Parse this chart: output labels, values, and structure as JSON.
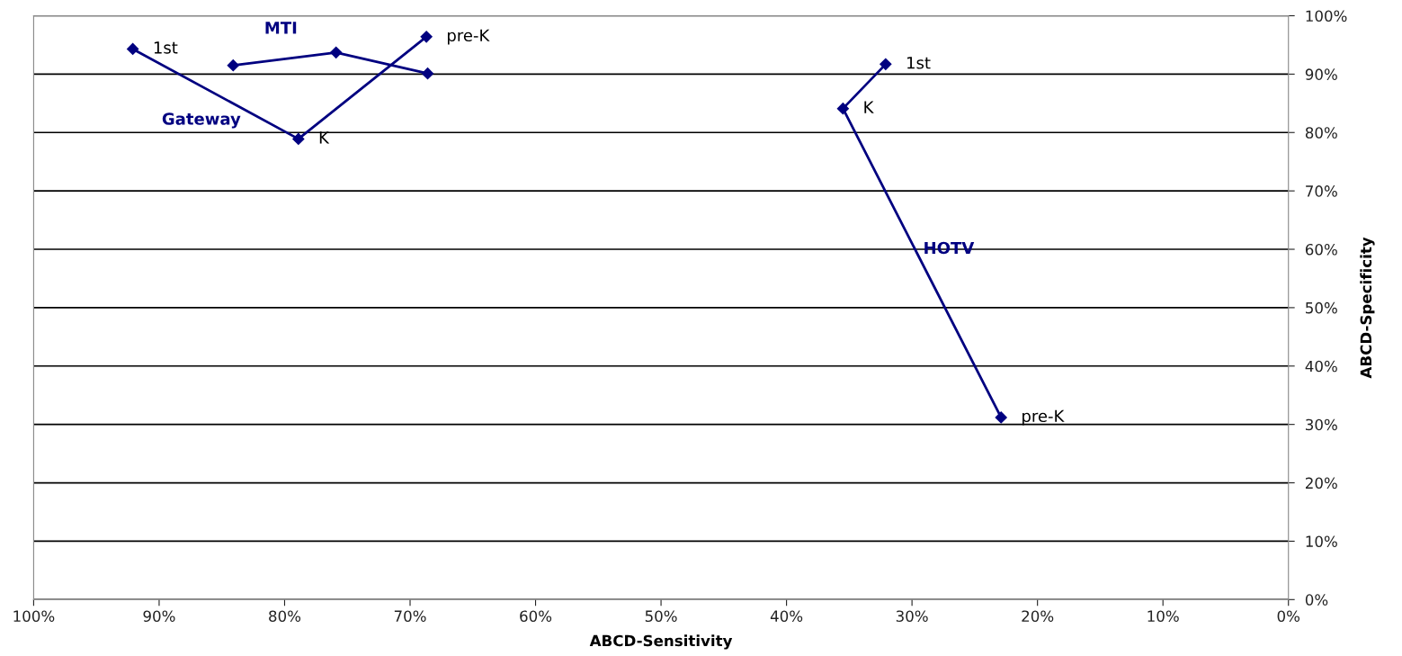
{
  "chart_data": {
    "type": "line",
    "xlabel": "ABCD-Sensitivity",
    "ylabel": "ABCD-Specificity",
    "xlim": [
      100,
      0
    ],
    "ylim": [
      0,
      100
    ],
    "xticks": [
      {
        "value": 100,
        "label": "100%"
      },
      {
        "value": 90,
        "label": "90%"
      },
      {
        "value": 80,
        "label": "80%"
      },
      {
        "value": 70,
        "label": "70%"
      },
      {
        "value": 60,
        "label": "60%"
      },
      {
        "value": 50,
        "label": "50%"
      },
      {
        "value": 40,
        "label": "40%"
      },
      {
        "value": 30,
        "label": "30%"
      },
      {
        "value": 20,
        "label": "20%"
      },
      {
        "value": 10,
        "label": "10%"
      },
      {
        "value": 0,
        "label": "0%"
      }
    ],
    "yticks": [
      {
        "value": 0,
        "label": "0%"
      },
      {
        "value": 10,
        "label": "10%"
      },
      {
        "value": 20,
        "label": "20%"
      },
      {
        "value": 30,
        "label": "30%"
      },
      {
        "value": 40,
        "label": "40%"
      },
      {
        "value": 50,
        "label": "50%"
      },
      {
        "value": 60,
        "label": "60%"
      },
      {
        "value": 70,
        "label": "70%"
      },
      {
        "value": 80,
        "label": "80%"
      },
      {
        "value": 90,
        "label": "90%"
      },
      {
        "value": 100,
        "label": "100%"
      }
    ],
    "grid": "y",
    "marker": "diamond",
    "line_style": "solid",
    "series": [
      {
        "name": "Gateway",
        "color": "#000080",
        "x": [
          92.1,
          78.9,
          68.7
        ],
        "values": [
          94.3,
          78.9,
          96.4
        ]
      },
      {
        "name": "MTI",
        "color": "#000080",
        "x": [
          84.1,
          75.9,
          68.6
        ],
        "values": [
          91.5,
          93.7,
          90.1
        ]
      },
      {
        "name": "HOTV",
        "color": "#000080",
        "x": [
          32.1,
          35.5,
          22.9
        ],
        "values": [
          91.7,
          84.1,
          31.2
        ]
      }
    ],
    "annotations": [
      {
        "text": "1st",
        "x": 92.1,
        "y": 94.3
      },
      {
        "text": "K",
        "x": 78.9,
        "y": 78.9
      },
      {
        "text": "pre-K",
        "x": 68.7,
        "y": 96.4
      },
      {
        "text": "1st",
        "x": 32.1,
        "y": 91.7
      },
      {
        "text": "K",
        "x": 35.5,
        "y": 84.1
      },
      {
        "text": "pre-K",
        "x": 22.9,
        "y": 31.2
      }
    ]
  }
}
